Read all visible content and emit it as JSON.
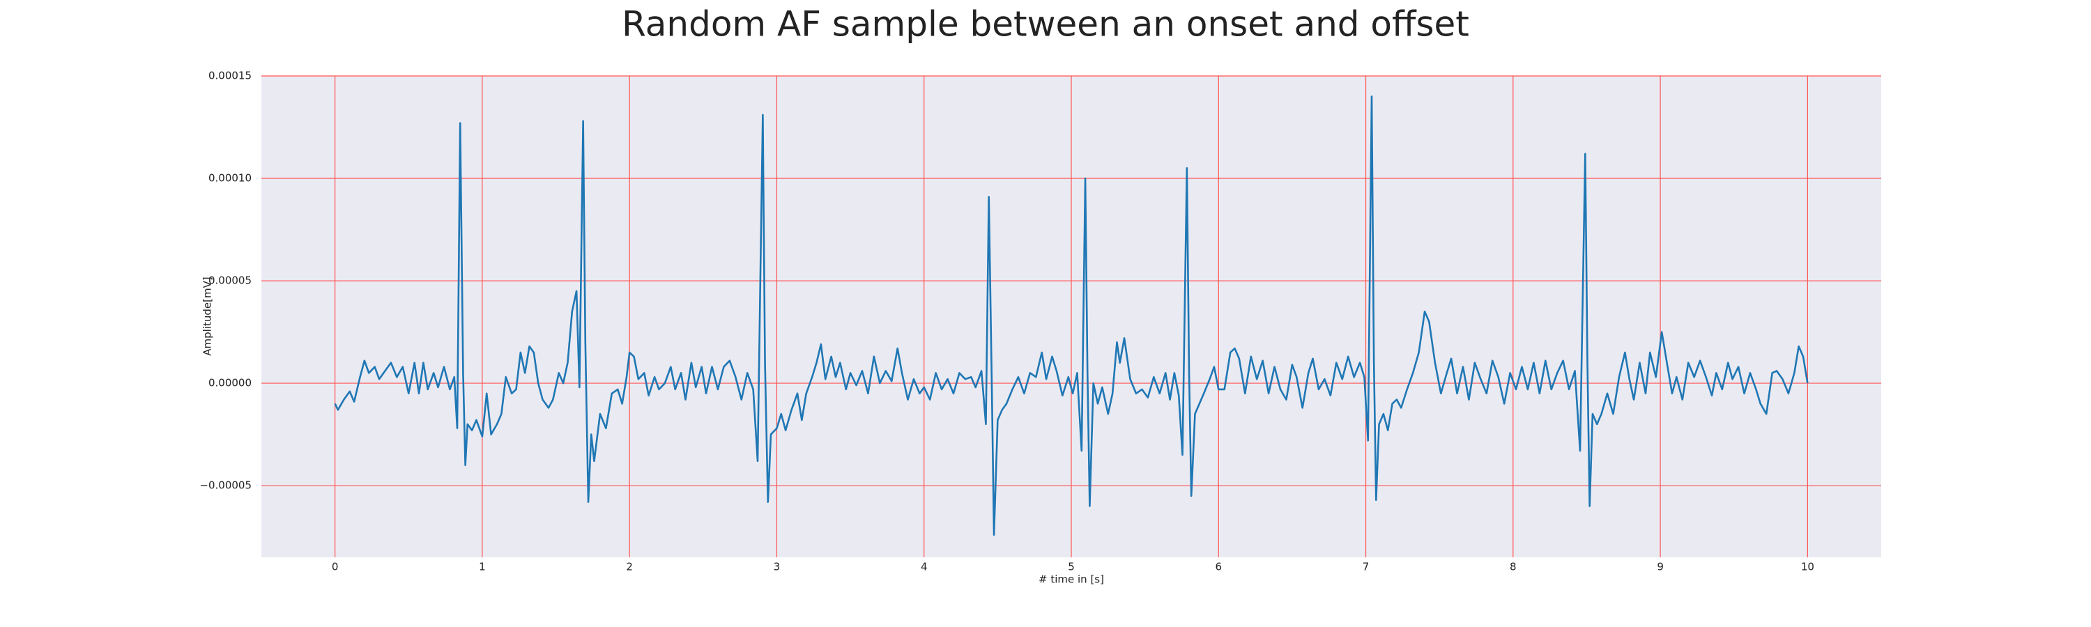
{
  "chart_data": {
    "type": "line",
    "title": "Random AF sample between an onset and offset",
    "xlabel": "# time in [s]",
    "ylabel": "Amplitude[mV]",
    "xlim": [
      -0.5,
      10.5
    ],
    "ylim": [
      -8.5e-05,
      0.00015
    ],
    "xticks": [
      0,
      1,
      2,
      3,
      4,
      5,
      6,
      7,
      8,
      9,
      10
    ],
    "yticks": [
      {
        "value": -5e-05,
        "label": "−0.00005"
      },
      {
        "value": 0,
        "label": "0.00000"
      },
      {
        "value": 5e-05,
        "label": "0.00005"
      },
      {
        "value": 0.0001,
        "label": "0.00010"
      },
      {
        "value": 0.00015,
        "label": "0.00015"
      }
    ],
    "grid": true,
    "grid_color": "#ff5555",
    "background": "#eaeaf2",
    "series": [
      {
        "color": "#1f77b4",
        "x": [
          0,
          0.02,
          0.06,
          0.1,
          0.13,
          0.17,
          0.2,
          0.23,
          0.27,
          0.3,
          0.34,
          0.38,
          0.42,
          0.46,
          0.5,
          0.54,
          0.57,
          0.6,
          0.63,
          0.67,
          0.7,
          0.74,
          0.78,
          0.81,
          0.83,
          0.85,
          0.87,
          0.885,
          0.9,
          0.93,
          0.96,
          1.0,
          1.03,
          1.06,
          1.1,
          1.13,
          1.16,
          1.2,
          1.23,
          1.26,
          1.29,
          1.32,
          1.35,
          1.38,
          1.41,
          1.45,
          1.48,
          1.52,
          1.55,
          1.58,
          1.61,
          1.64,
          1.66,
          1.685,
          1.7,
          1.72,
          1.74,
          1.76,
          1.8,
          1.84,
          1.88,
          1.92,
          1.95,
          1.98,
          2.0,
          2.03,
          2.06,
          2.1,
          2.13,
          2.17,
          2.2,
          2.24,
          2.28,
          2.31,
          2.35,
          2.38,
          2.42,
          2.45,
          2.49,
          2.52,
          2.56,
          2.6,
          2.64,
          2.68,
          2.72,
          2.76,
          2.8,
          2.84,
          2.87,
          2.905,
          2.92,
          2.94,
          2.96,
          3.0,
          3.03,
          3.06,
          3.1,
          3.14,
          3.17,
          3.2,
          3.24,
          3.27,
          3.3,
          3.33,
          3.37,
          3.4,
          3.43,
          3.47,
          3.5,
          3.54,
          3.58,
          3.62,
          3.66,
          3.7,
          3.74,
          3.78,
          3.82,
          3.85,
          3.89,
          3.93,
          3.97,
          4.0,
          4.04,
          4.08,
          4.12,
          4.16,
          4.2,
          4.24,
          4.28,
          4.32,
          4.35,
          4.39,
          4.42,
          4.44,
          4.46,
          4.475,
          4.5,
          4.53,
          4.56,
          4.6,
          4.64,
          4.68,
          4.72,
          4.76,
          4.8,
          4.83,
          4.87,
          4.9,
          4.94,
          4.98,
          5.01,
          5.04,
          5.07,
          5.095,
          5.11,
          5.125,
          5.15,
          5.18,
          5.21,
          5.25,
          5.28,
          5.31,
          5.33,
          5.36,
          5.4,
          5.44,
          5.48,
          5.52,
          5.56,
          5.6,
          5.64,
          5.67,
          5.7,
          5.73,
          5.755,
          5.785,
          5.8,
          5.815,
          5.84,
          5.87,
          5.9,
          5.94,
          5.97,
          6.0,
          6.04,
          6.08,
          6.11,
          6.14,
          6.18,
          6.22,
          6.26,
          6.3,
          6.34,
          6.38,
          6.42,
          6.46,
          6.5,
          6.53,
          6.57,
          6.61,
          6.64,
          6.68,
          6.72,
          6.76,
          6.8,
          6.84,
          6.88,
          6.92,
          6.96,
          6.99,
          7.015,
          7.04,
          7.055,
          7.07,
          7.09,
          7.12,
          7.15,
          7.18,
          7.21,
          7.24,
          7.28,
          7.32,
          7.36,
          7.4,
          7.43,
          7.47,
          7.51,
          7.55,
          7.58,
          7.62,
          7.66,
          7.7,
          7.74,
          7.78,
          7.82,
          7.86,
          7.9,
          7.94,
          7.98,
          8.02,
          8.06,
          8.1,
          8.14,
          8.18,
          8.22,
          8.26,
          8.3,
          8.34,
          8.38,
          8.42,
          8.455,
          8.49,
          8.505,
          8.52,
          8.54,
          8.57,
          8.6,
          8.64,
          8.68,
          8.72,
          8.76,
          8.79,
          8.82,
          8.86,
          8.9,
          8.93,
          8.97,
          9.01,
          9.04,
          9.08,
          9.11,
          9.15,
          9.19,
          9.23,
          9.27,
          9.31,
          9.35,
          9.38,
          9.42,
          9.46,
          9.49,
          9.53,
          9.57,
          9.61,
          9.65,
          9.68,
          9.72,
          9.76,
          9.79,
          9.83,
          9.87,
          9.91,
          9.94,
          9.97,
          10.0
        ],
        "values": [
          -1e-05,
          -1.3e-05,
          -8e-06,
          -4e-06,
          -9e-06,
          3e-06,
          1.1e-05,
          5e-06,
          8e-06,
          2e-06,
          6e-06,
          1e-05,
          3e-06,
          8e-06,
          -5e-06,
          1e-05,
          -5e-06,
          1e-05,
          -3e-06,
          5e-06,
          -2e-06,
          8e-06,
          -3e-06,
          3e-06,
          -2.2e-05,
          0.000127,
          5e-06,
          -4e-05,
          -2e-05,
          -2.3e-05,
          -1.8e-05,
          -2.6e-05,
          -5e-06,
          -2.5e-05,
          -2e-05,
          -1.5e-05,
          3e-06,
          -5e-06,
          -3e-06,
          1.5e-05,
          5e-06,
          1.8e-05,
          1.5e-05,
          0,
          -8e-06,
          -1.2e-05,
          -8e-06,
          5e-06,
          0,
          1e-05,
          3.5e-05,
          4.5e-05,
          -2e-06,
          0.000128,
          2e-05,
          -5.8e-05,
          -2.5e-05,
          -3.8e-05,
          -1.5e-05,
          -2.2e-05,
          -5e-06,
          -3e-06,
          -1e-05,
          3e-06,
          1.5e-05,
          1.3e-05,
          2e-06,
          5e-06,
          -6e-06,
          3e-06,
          -3e-06,
          0,
          8e-06,
          -3e-06,
          5e-06,
          -8e-06,
          1e-05,
          -2e-06,
          8e-06,
          -5e-06,
          8e-06,
          -3e-06,
          8e-06,
          1.1e-05,
          3e-06,
          -8e-06,
          5e-06,
          -3e-06,
          -3.8e-05,
          0.000131,
          1e-05,
          -5.8e-05,
          -2.5e-05,
          -2.2e-05,
          -1.5e-05,
          -2.3e-05,
          -1.3e-05,
          -5e-06,
          -1.8e-05,
          -5e-06,
          3e-06,
          1e-05,
          1.9e-05,
          2e-06,
          1.3e-05,
          3e-06,
          1e-05,
          -3e-06,
          5e-06,
          -1e-06,
          6e-06,
          -5e-06,
          1.3e-05,
          0,
          6e-06,
          1e-06,
          1.7e-05,
          5e-06,
          -8e-06,
          2e-06,
          -5e-06,
          -2e-06,
          -8e-06,
          5e-06,
          -3e-06,
          2e-06,
          -5e-06,
          5e-06,
          2e-06,
          3e-06,
          -2e-06,
          6e-06,
          -2e-05,
          9.1e-05,
          0,
          -7.4e-05,
          -1.8e-05,
          -1.3e-05,
          -1e-05,
          -3e-06,
          3e-06,
          -5e-06,
          5e-06,
          3e-06,
          1.5e-05,
          2e-06,
          1.3e-05,
          6e-06,
          -6e-06,
          3e-06,
          -5e-06,
          5e-06,
          -3.3e-05,
          0.0001,
          5e-06,
          -6e-05,
          0,
          -1e-05,
          -2e-06,
          -1.5e-05,
          -5e-06,
          2e-05,
          1e-05,
          2.2e-05,
          2e-06,
          -5e-06,
          -3e-06,
          -7e-06,
          3e-06,
          -5e-06,
          5e-06,
          -8e-06,
          5e-06,
          -6e-06,
          -3.5e-05,
          0.000105,
          5e-06,
          -5.5e-05,
          -1.5e-05,
          -1e-05,
          -5e-06,
          2e-06,
          8e-06,
          -3e-06,
          -3e-06,
          1.5e-05,
          1.7e-05,
          1.2e-05,
          -5e-06,
          1.3e-05,
          2e-06,
          1.1e-05,
          -5e-06,
          8e-06,
          -3e-06,
          -8e-06,
          9e-06,
          3e-06,
          -1.2e-05,
          5e-06,
          1.2e-05,
          -3e-06,
          2e-06,
          -6e-06,
          1e-05,
          2e-06,
          1.3e-05,
          3e-06,
          1e-05,
          3e-06,
          -2.8e-05,
          0.00014,
          1e-05,
          -5.7e-05,
          -2e-05,
          -1.5e-05,
          -2.3e-05,
          -1e-05,
          -8e-06,
          -1.2e-05,
          -3e-06,
          5e-06,
          1.5e-05,
          3.5e-05,
          3e-05,
          1e-05,
          -5e-06,
          5e-06,
          1.2e-05,
          -5e-06,
          8e-06,
          -8e-06,
          1e-05,
          2e-06,
          -5e-06,
          1.1e-05,
          3e-06,
          -1e-05,
          5e-06,
          -3e-06,
          8e-06,
          -3e-06,
          1e-05,
          -5e-06,
          1.1e-05,
          -3e-06,
          5e-06,
          1.1e-05,
          -3e-06,
          6e-06,
          -3.3e-05,
          0.000112,
          1e-05,
          -6e-05,
          -1.5e-05,
          -2e-05,
          -1.5e-05,
          -5e-06,
          -1.5e-05,
          3e-06,
          1.5e-05,
          2e-06,
          -8e-06,
          1e-05,
          -5e-06,
          1.5e-05,
          3e-06,
          2.5e-05,
          1.2e-05,
          -5e-06,
          3e-06,
          -8e-06,
          1e-05,
          3e-06,
          1.1e-05,
          3e-06,
          -6e-06,
          5e-06,
          -3e-06,
          1e-05,
          2e-06,
          8e-06,
          -5e-06,
          5e-06,
          -3e-06,
          -1e-05,
          -1.5e-05,
          5e-06,
          6e-06,
          2e-06,
          -5e-06,
          5e-06,
          1.8e-05,
          1.3e-05,
          0
        ]
      }
    ]
  }
}
